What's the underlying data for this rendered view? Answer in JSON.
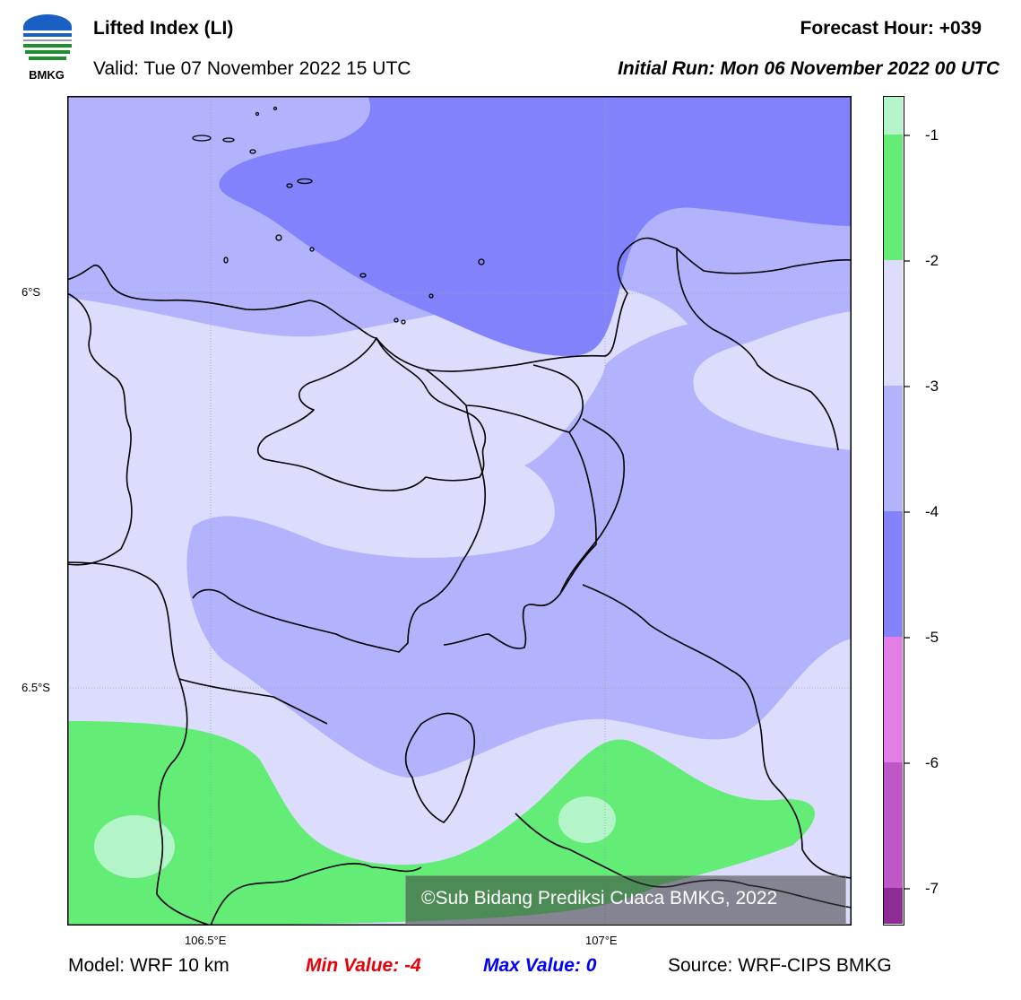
{
  "header": {
    "title": "Lifted Index (LI)",
    "valid": "Valid: Tue 07 November 2022 15 UTC",
    "forecast_hour": "Forecast Hour: +039",
    "initial_run": "Initial Run: Mon 06 November 2022 00 UTC",
    "logo_text": "BMKG"
  },
  "map": {
    "lat_labels": [
      "6°S",
      "6.5°S"
    ],
    "lon_labels": [
      "106.5°E",
      "107°E"
    ],
    "watermark": "©Sub Bidang Prediksi Cuaca BMKG, 2022",
    "fill_colors": {
      "above_-1": "#b3f5c8",
      "-2_to_-1": "#63ec76",
      "-3_to_-2": "#dcdcfd",
      "-4_to_-3": "#b2b2fd",
      "-5_to_-4": "#8282fc"
    }
  },
  "colorbar": {
    "labels": [
      "-1",
      "-2",
      "-3",
      "-4",
      "-5",
      "-6",
      "-7"
    ],
    "colors": [
      "#b3f5c8",
      "#63ec76",
      "#dcdcfd",
      "#b2b2fd",
      "#8282fc",
      "#e37ee6",
      "#bf58c6",
      "#8f2b94"
    ]
  },
  "footer": {
    "model": "Model: WRF 10 km",
    "min": "Min Value: -4",
    "max": "Max Value: 0",
    "source": "Source: WRF-CIPS BMKG"
  }
}
